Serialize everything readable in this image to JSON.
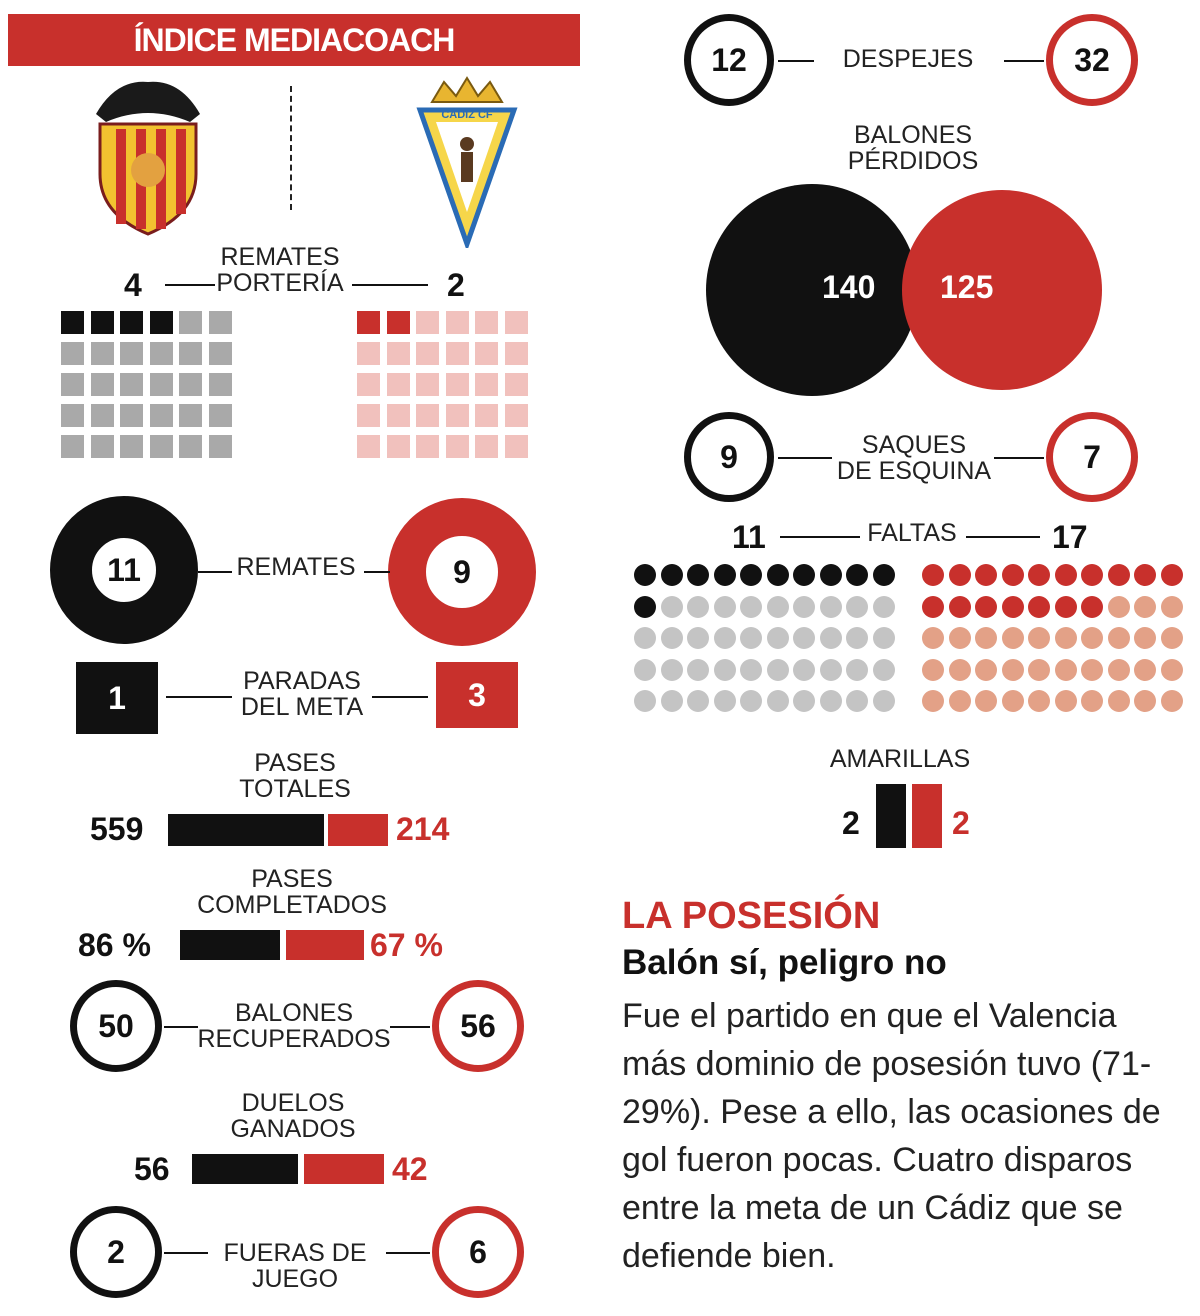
{
  "header": {
    "title": "ÍNDICE MEDIACOACH"
  },
  "teams": {
    "home": {
      "name": "Valencia",
      "color": "#111111",
      "light": "#a9a9a9"
    },
    "away": {
      "name": "Cádiz",
      "color": "#c8302c",
      "light": "#f1c1bd",
      "dot_light": "#e3a187"
    },
    "away_crest_text": "CÁDIZ CF"
  },
  "stats": {
    "remates_porteria": {
      "label1": "REMATES",
      "label2": "PORTERÍA",
      "home": "4",
      "away": "2"
    },
    "remates": {
      "label": "REMATES",
      "home": "11",
      "away": "9"
    },
    "paradas": {
      "label1": "PARADAS",
      "label2": "DEL META",
      "home": "1",
      "away": "3"
    },
    "pases_totales": {
      "label1": "PASES",
      "label2": "TOTALES",
      "home": "559",
      "away": "214"
    },
    "pases_completados": {
      "label1": "PASES",
      "label2": "COMPLETADOS",
      "home": "86 %",
      "away": "67 %"
    },
    "balones_recuperados": {
      "label1": "BALONES",
      "label2": "RECUPERADOS",
      "home": "50",
      "away": "56"
    },
    "duelos": {
      "label1": "DUELOS",
      "label2": "GANADOS",
      "home": "56",
      "away": "42"
    },
    "fueras_juego": {
      "label1": "FUERAS DE",
      "label2": "JUEGO",
      "home": "2",
      "away": "6"
    },
    "despejes": {
      "label": "DESPEJES",
      "home": "12",
      "away": "32"
    },
    "balones_perdidos": {
      "label1": "BALONES",
      "label2": "PÉRDIDOS",
      "home": "140",
      "away": "125"
    },
    "saques_esquina": {
      "label1": "SAQUES",
      "label2": "DE ESQUINA",
      "home": "9",
      "away": "7"
    },
    "faltas": {
      "label": "FALTAS",
      "home": "11",
      "away": "17"
    },
    "amarillas": {
      "label": "AMARILLAS",
      "home": "2",
      "away": "2"
    }
  },
  "posesion": {
    "heading": "LA POSESIÓN",
    "subheading": "Balón sí, peligro no",
    "body": "Fue el partido en que el Valencia más dominio de posesión tuvo (71-29%). Pese a ello, las ocasiones de gol fueron pocas. Cuatro disparos entre la meta de un Cádiz que se defiende bien."
  },
  "chart_data": [
    {
      "type": "bar",
      "title": "PASES TOTALES",
      "categories": [
        "Valencia",
        "Cádiz"
      ],
      "values": [
        559,
        214
      ]
    },
    {
      "type": "bar",
      "title": "PASES COMPLETADOS",
      "categories": [
        "Valencia",
        "Cádiz"
      ],
      "values": [
        86,
        67
      ],
      "unit": "%"
    },
    {
      "type": "bar",
      "title": "DUELOS GANADOS",
      "categories": [
        "Valencia",
        "Cádiz"
      ],
      "values": [
        56,
        42
      ]
    },
    {
      "type": "scatter",
      "title": "REMATES PORTERÍA",
      "categories": [
        "Valencia",
        "Cádiz"
      ],
      "values": [
        4,
        2
      ],
      "grid_total": 30
    },
    {
      "type": "scatter",
      "title": "FALTAS",
      "categories": [
        "Valencia",
        "Cádiz"
      ],
      "values": [
        11,
        17
      ],
      "grid_total": 50
    },
    {
      "type": "pie",
      "title": "BALONES PÉRDIDOS",
      "categories": [
        "Valencia",
        "Cádiz"
      ],
      "values": [
        140,
        125
      ]
    },
    {
      "type": "bar",
      "title": "AMARILLAS",
      "categories": [
        "Valencia",
        "Cádiz"
      ],
      "values": [
        2,
        2
      ]
    }
  ]
}
